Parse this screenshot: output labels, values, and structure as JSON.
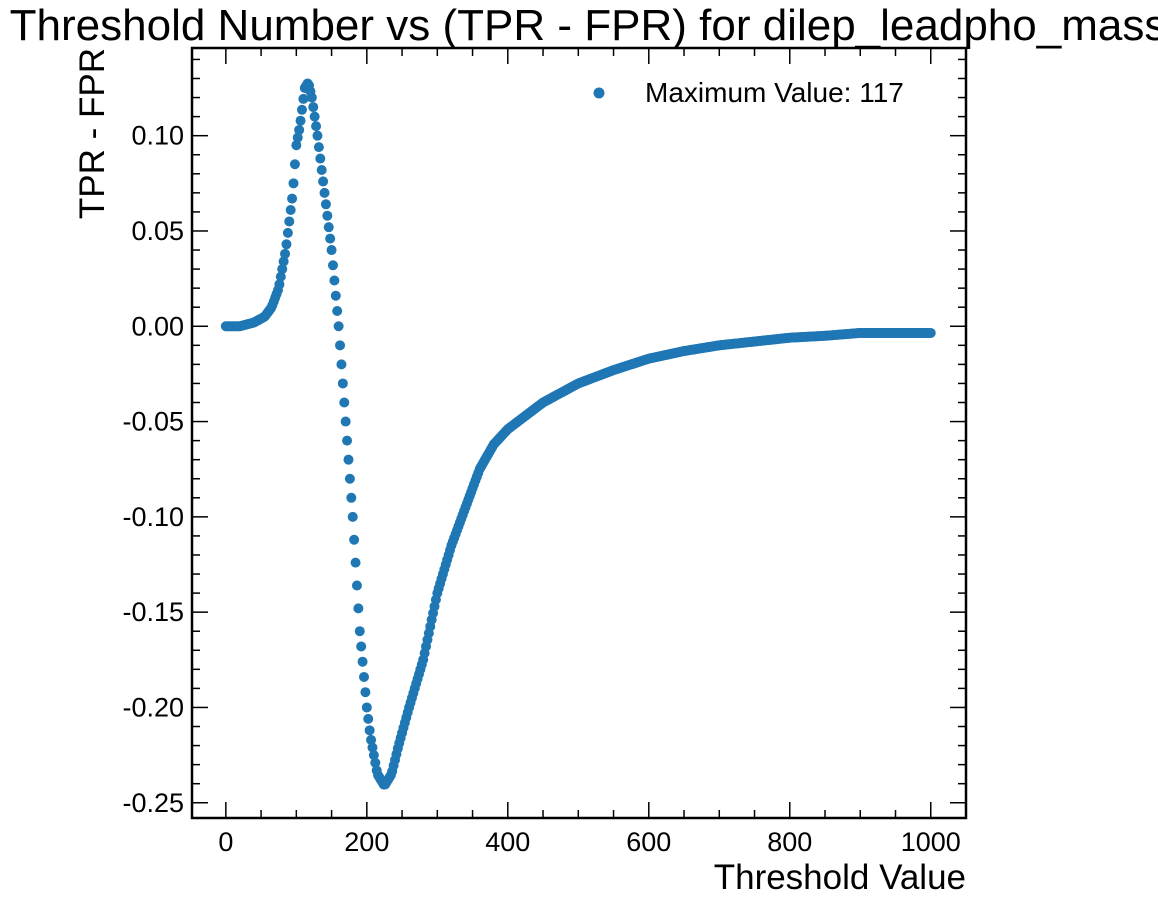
{
  "chart_data": {
    "type": "scatter",
    "title": "Threshold Number vs (TPR - FPR) for dilep_leadpho_mass",
    "xlabel": "Threshold Value",
    "ylabel": "TPR - FPR",
    "xlim": [
      -48,
      1050
    ],
    "ylim": [
      -0.258,
      0.146
    ],
    "xticks": [
      0,
      200,
      400,
      600,
      800,
      1000
    ],
    "xtick_labels": [
      "0",
      "200",
      "400",
      "600",
      "800",
      "1000"
    ],
    "yticks": [
      0.1,
      0.05,
      0.0,
      -0.05,
      -0.1,
      -0.15,
      -0.2,
      -0.25
    ],
    "ytick_labels": [
      "0.10",
      "0.05",
      "0.00",
      "-0.05",
      "-0.10",
      "-0.15",
      "-0.20",
      "-0.25"
    ],
    "grid": false,
    "legend_position": "top-right",
    "color": "#1f77b4",
    "series": [
      {
        "name": "Maximum Value:  117",
        "curve": [
          [
            0,
            0.0
          ],
          [
            20,
            0.0
          ],
          [
            40,
            0.002
          ],
          [
            55,
            0.005
          ],
          [
            65,
            0.01
          ],
          [
            75,
            0.02
          ],
          [
            85,
            0.04
          ],
          [
            95,
            0.07
          ],
          [
            100,
            0.095
          ],
          [
            105,
            0.105
          ],
          [
            112,
            0.125
          ],
          [
            117,
            0.128
          ],
          [
            122,
            0.12
          ],
          [
            130,
            0.1
          ],
          [
            140,
            0.07
          ],
          [
            150,
            0.04
          ],
          [
            160,
            0.0
          ],
          [
            170,
            -0.05
          ],
          [
            180,
            -0.1
          ],
          [
            190,
            -0.16
          ],
          [
            200,
            -0.2
          ],
          [
            205,
            -0.215
          ],
          [
            215,
            -0.235
          ],
          [
            225,
            -0.241
          ],
          [
            235,
            -0.235
          ],
          [
            245,
            -0.22
          ],
          [
            260,
            -0.2
          ],
          [
            280,
            -0.175
          ],
          [
            300,
            -0.14
          ],
          [
            320,
            -0.115
          ],
          [
            340,
            -0.095
          ],
          [
            360,
            -0.075
          ],
          [
            380,
            -0.062
          ],
          [
            400,
            -0.054
          ],
          [
            450,
            -0.04
          ],
          [
            500,
            -0.03
          ],
          [
            550,
            -0.023
          ],
          [
            600,
            -0.017
          ],
          [
            650,
            -0.013
          ],
          [
            700,
            -0.01
          ],
          [
            750,
            -0.008
          ],
          [
            800,
            -0.006
          ],
          [
            850,
            -0.005
          ],
          [
            900,
            -0.0035
          ],
          [
            950,
            -0.0035
          ],
          [
            1000,
            -0.0035
          ]
        ]
      }
    ]
  }
}
